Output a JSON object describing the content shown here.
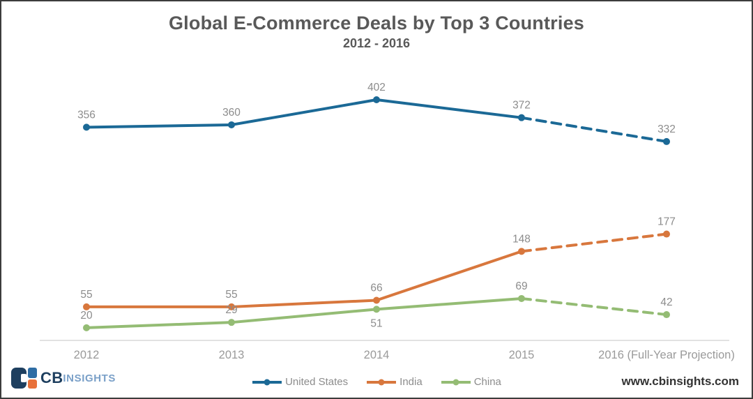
{
  "chart_data": {
    "type": "line",
    "title": "Global E-Commerce Deals by Top 3 Countries",
    "subtitle": "2012 - 2016",
    "x": [
      "2012",
      "2013",
      "2014",
      "2015",
      "2016 (Full-Year Projection)"
    ],
    "series": [
      {
        "name": "United States",
        "color": "#1b6996",
        "values": [
          356,
          360,
          402,
          372,
          332
        ],
        "label_positions": [
          "above",
          "above",
          "above",
          "above",
          "above"
        ]
      },
      {
        "name": "India",
        "color": "#d8773d",
        "values": [
          55,
          55,
          66,
          148,
          177
        ],
        "label_positions": [
          "above",
          "above",
          "above",
          "above",
          "above"
        ]
      },
      {
        "name": "China",
        "color": "#94bc74",
        "values": [
          20,
          29,
          51,
          69,
          42
        ],
        "label_positions": [
          "above",
          "above",
          "below",
          "above",
          "above"
        ]
      }
    ],
    "projection": {
      "segment": "2015 to 2016",
      "line_style": "dashed"
    },
    "ylim": [
      0,
      430
    ],
    "grid": false,
    "legend_position": "bottom-center",
    "style_colors": {
      "title_text": "#595959",
      "data_label": "#8c8c8c",
      "tick_label": "#9a9a9a",
      "axis_line": "#d9d9d9"
    }
  },
  "footer": {
    "website": "www.cbinsights.com",
    "logo": {
      "cb_text": "CB",
      "insights_text": "INSIGHTS",
      "navy": "#1e3f5f",
      "blue": "#2e6da4",
      "orange": "#e8713a",
      "insights_text_color": "#7aa0c8"
    }
  }
}
